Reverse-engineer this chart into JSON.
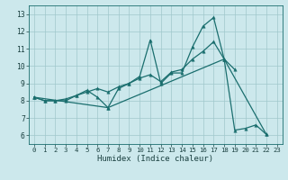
{
  "xlabel": "Humidex (Indice chaleur)",
  "background_color": "#cce8ec",
  "grid_color": "#a0c8cc",
  "line_color": "#1a6e6e",
  "xlim": [
    -0.5,
    23.5
  ],
  "ylim": [
    5.5,
    13.5
  ],
  "xticks": [
    0,
    1,
    2,
    3,
    4,
    5,
    6,
    7,
    8,
    9,
    10,
    11,
    12,
    13,
    14,
    15,
    16,
    17,
    18,
    19,
    20,
    21,
    22,
    23
  ],
  "yticks": [
    6,
    7,
    8,
    9,
    10,
    11,
    12,
    13
  ],
  "line1_x": [
    0,
    1,
    2,
    3,
    4,
    5,
    6,
    7,
    8,
    9,
    10,
    11,
    12,
    13,
    14,
    15,
    16,
    17,
    18,
    19,
    20,
    21,
    22
  ],
  "line1_y": [
    8.2,
    8.0,
    8.0,
    8.0,
    8.3,
    8.6,
    8.2,
    7.6,
    8.7,
    9.0,
    9.4,
    11.5,
    9.0,
    9.6,
    9.6,
    11.1,
    12.3,
    12.8,
    10.4,
    6.3,
    6.4,
    6.6,
    6.05
  ],
  "line2_x": [
    0,
    1,
    2,
    3,
    4,
    5,
    6,
    7,
    8,
    9,
    10,
    11,
    12,
    13,
    14,
    15,
    16,
    17,
    18,
    19
  ],
  "line2_y": [
    8.2,
    8.0,
    8.0,
    8.1,
    8.3,
    8.5,
    8.7,
    8.5,
    8.8,
    9.0,
    9.3,
    9.5,
    9.1,
    9.65,
    9.8,
    10.4,
    10.85,
    11.4,
    10.4,
    9.8
  ],
  "line3_x": [
    0,
    7,
    18,
    22
  ],
  "line3_y": [
    8.2,
    7.6,
    10.4,
    6.05
  ],
  "marker_size": 2.5,
  "line_width": 0.9
}
